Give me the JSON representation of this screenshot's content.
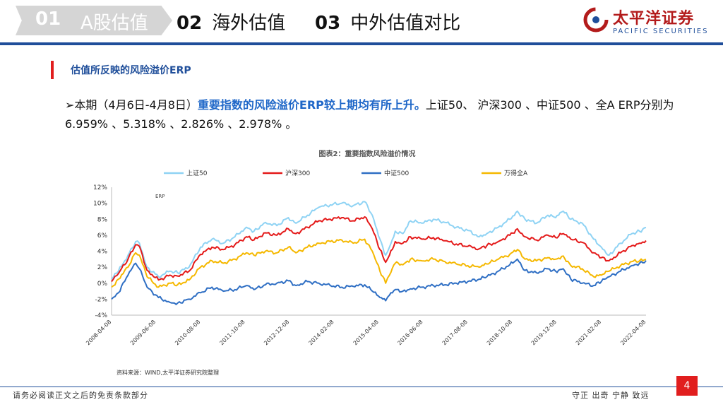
{
  "nav": {
    "tab1": {
      "num": "01",
      "label": "A股估值"
    },
    "tab2": {
      "num": "02",
      "label": "海外估值"
    },
    "tab3": {
      "num": "03",
      "label": "中外估值对比"
    }
  },
  "logo": {
    "cn": "太平洋证券",
    "en": "PACIFIC SECURITIES"
  },
  "colors": {
    "brand_blue": "#1f4e9a",
    "accent_red": "#e11e1e",
    "highlight_blue": "#1f67c8"
  },
  "section": {
    "title": "估值所反映的风险溢价ERP"
  },
  "summary": {
    "bullet": "➢",
    "prefix": "本期（4月6日-4月8日）",
    "highlight": "重要指数的风险溢价ERP较上期均有所上升。",
    "suffix": "上证50、 沪深300 、中证500 、全A ERP分别为6.959% 、5.318% 、2.826% 、2.978% 。"
  },
  "chart_data": {
    "type": "line",
    "title": "图表2：重要指数风险溢价情况",
    "axis_title": "ERP",
    "source": "资料来源：WIND,太平洋证券研究院整理",
    "ylim": [
      -4,
      12
    ],
    "yticks": [
      -4,
      -2,
      0,
      2,
      4,
      6,
      8,
      10,
      12
    ],
    "ytick_labels": [
      "-4%",
      "-2%",
      "0%",
      "2%",
      "4%",
      "6%",
      "8%",
      "10%",
      "12%"
    ],
    "xlim": [
      2008.27,
      2022.27
    ],
    "xticks": [
      2008.27,
      2009.43,
      2010.6,
      2011.77,
      2012.93,
      2014.1,
      2015.27,
      2016.43,
      2017.6,
      2018.77,
      2019.93,
      2021.1,
      2022.27
    ],
    "xtick_labels": [
      "2008-04-08",
      "2009-06-08",
      "2010-08-08",
      "2011-10-08",
      "2012-12-08",
      "2014-02-08",
      "2015-04-08",
      "2016-06-08",
      "2017-08-08",
      "2018-10-08",
      "2019-12-08",
      "2021-02-08",
      "2022-04-08"
    ],
    "legend_position": "top",
    "series": [
      {
        "name": "上证50",
        "color": "#8fd3f4",
        "x": [
          2008.27,
          2008.45,
          2008.7,
          2008.9,
          2009.0,
          2009.2,
          2009.5,
          2009.8,
          2010.0,
          2010.3,
          2010.6,
          2010.9,
          2011.2,
          2011.5,
          2011.8,
          2012.0,
          2012.3,
          2012.6,
          2012.9,
          2013.1,
          2013.4,
          2013.7,
          2014.0,
          2014.3,
          2014.6,
          2014.9,
          2015.1,
          2015.3,
          2015.45,
          2015.55,
          2015.7,
          2015.9,
          2016.1,
          2016.4,
          2016.7,
          2017.0,
          2017.3,
          2017.6,
          2017.9,
          2018.1,
          2018.4,
          2018.7,
          2018.9,
          2019.1,
          2019.4,
          2019.7,
          2019.9,
          2020.1,
          2020.3,
          2020.6,
          2020.9,
          2021.1,
          2021.3,
          2021.6,
          2021.9,
          2022.1,
          2022.27
        ],
        "y": [
          0.5,
          1.5,
          3.5,
          5.2,
          5.0,
          2.0,
          0.8,
          1.5,
          1.3,
          2.0,
          4.5,
          5.5,
          5.0,
          5.8,
          7.0,
          6.5,
          7.6,
          7.2,
          8.2,
          7.5,
          8.5,
          9.5,
          9.8,
          10.0,
          9.7,
          10.2,
          8.5,
          5.5,
          3.5,
          4.5,
          6.5,
          6.2,
          7.8,
          7.5,
          8.0,
          7.6,
          7.0,
          6.6,
          5.8,
          6.2,
          7.0,
          8.0,
          9.0,
          8.0,
          7.5,
          8.5,
          8.2,
          9.0,
          8.0,
          7.5,
          5.5,
          4.5,
          3.5,
          5.0,
          6.2,
          6.5,
          6.959
        ]
      },
      {
        "name": "沪深300",
        "color": "#e41a1a",
        "x": [
          2008.27,
          2008.45,
          2008.7,
          2008.9,
          2009.0,
          2009.2,
          2009.5,
          2009.8,
          2010.0,
          2010.3,
          2010.6,
          2010.9,
          2011.2,
          2011.5,
          2011.8,
          2012.0,
          2012.3,
          2012.6,
          2012.9,
          2013.1,
          2013.4,
          2013.7,
          2014.0,
          2014.3,
          2014.6,
          2014.9,
          2015.1,
          2015.3,
          2015.45,
          2015.55,
          2015.7,
          2015.9,
          2016.1,
          2016.4,
          2016.7,
          2017.0,
          2017.3,
          2017.6,
          2017.9,
          2018.1,
          2018.4,
          2018.7,
          2018.9,
          2019.1,
          2019.4,
          2019.7,
          2019.9,
          2020.1,
          2020.3,
          2020.6,
          2020.9,
          2021.1,
          2021.3,
          2021.6,
          2021.9,
          2022.1,
          2022.27
        ],
        "y": [
          0.2,
          1.2,
          3.0,
          4.8,
          4.6,
          1.6,
          0.4,
          1.0,
          0.9,
          1.5,
          3.6,
          4.5,
          4.2,
          4.8,
          5.8,
          5.4,
          6.3,
          6.0,
          6.8,
          6.2,
          7.0,
          7.8,
          8.0,
          8.2,
          7.8,
          8.3,
          6.8,
          4.2,
          2.6,
          3.5,
          5.2,
          5.0,
          5.8,
          5.5,
          5.7,
          5.3,
          4.9,
          4.6,
          4.3,
          4.7,
          5.2,
          6.0,
          6.8,
          5.8,
          5.4,
          6.0,
          5.7,
          6.2,
          5.5,
          5.1,
          3.8,
          3.2,
          2.8,
          3.8,
          4.7,
          5.0,
          5.318
        ]
      },
      {
        "name": "中证500",
        "color": "#2f6fc4",
        "x": [
          2008.27,
          2008.45,
          2008.7,
          2008.9,
          2009.0,
          2009.2,
          2009.5,
          2009.8,
          2010.0,
          2010.3,
          2010.6,
          2010.9,
          2011.2,
          2011.5,
          2011.8,
          2012.0,
          2012.3,
          2012.6,
          2012.9,
          2013.1,
          2013.4,
          2013.7,
          2014.0,
          2014.3,
          2014.6,
          2014.9,
          2015.1,
          2015.3,
          2015.45,
          2015.55,
          2015.7,
          2015.9,
          2016.1,
          2016.4,
          2016.7,
          2017.0,
          2017.3,
          2017.6,
          2017.9,
          2018.1,
          2018.4,
          2018.7,
          2018.9,
          2019.1,
          2019.4,
          2019.7,
          2019.9,
          2020.1,
          2020.3,
          2020.6,
          2020.9,
          2021.1,
          2021.3,
          2021.6,
          2021.9,
          2022.1,
          2022.27
        ],
        "y": [
          -2.0,
          -1.2,
          1.0,
          2.5,
          1.8,
          -0.5,
          -1.8,
          -2.4,
          -2.5,
          -2.0,
          -1.2,
          -0.5,
          -1.0,
          -0.8,
          -0.3,
          -0.8,
          -0.2,
          0.0,
          0.3,
          -0.3,
          0.2,
          0.0,
          -0.3,
          -0.5,
          -0.4,
          -0.2,
          -1.0,
          -1.8,
          -2.2,
          -1.5,
          -0.8,
          -1.0,
          -0.7,
          -0.5,
          -0.3,
          -0.2,
          0.0,
          0.2,
          0.5,
          0.8,
          1.5,
          2.3,
          3.0,
          1.6,
          1.3,
          1.8,
          1.5,
          1.8,
          0.5,
          0.0,
          -0.3,
          0.2,
          0.8,
          1.5,
          2.2,
          2.5,
          2.826
        ]
      },
      {
        "name": "万得全A",
        "color": "#f5b800",
        "x": [
          2008.27,
          2008.45,
          2008.7,
          2008.9,
          2009.0,
          2009.2,
          2009.5,
          2009.8,
          2010.0,
          2010.3,
          2010.6,
          2010.9,
          2011.2,
          2011.5,
          2011.8,
          2012.0,
          2012.3,
          2012.6,
          2012.9,
          2013.1,
          2013.4,
          2013.7,
          2014.0,
          2014.3,
          2014.6,
          2014.9,
          2015.1,
          2015.3,
          2015.45,
          2015.55,
          2015.7,
          2015.9,
          2016.1,
          2016.4,
          2016.7,
          2017.0,
          2017.3,
          2017.6,
          2017.9,
          2018.1,
          2018.4,
          2018.7,
          2018.9,
          2019.1,
          2019.4,
          2019.7,
          2019.9,
          2020.1,
          2020.3,
          2020.6,
          2020.9,
          2021.1,
          2021.3,
          2021.6,
          2021.9,
          2022.1,
          2022.27
        ],
        "y": [
          -0.5,
          0.5,
          2.0,
          3.8,
          3.5,
          0.8,
          -0.5,
          0.0,
          -0.2,
          0.4,
          2.0,
          2.8,
          2.5,
          3.0,
          3.8,
          3.5,
          4.0,
          3.8,
          4.5,
          3.8,
          4.5,
          5.0,
          5.2,
          5.4,
          5.0,
          5.5,
          4.0,
          1.5,
          0.0,
          1.0,
          2.5,
          2.3,
          3.0,
          2.8,
          3.0,
          2.7,
          2.4,
          2.2,
          2.0,
          2.4,
          3.0,
          3.6,
          4.2,
          3.0,
          2.8,
          3.2,
          3.0,
          3.4,
          2.2,
          1.8,
          0.8,
          1.0,
          1.5,
          2.2,
          2.7,
          2.8,
          2.978
        ]
      }
    ]
  },
  "footer": {
    "disclaimer": "请务必阅读正文之后的免责条款部分",
    "motto": "守正 出奇 宁静 致远",
    "page": "4"
  }
}
